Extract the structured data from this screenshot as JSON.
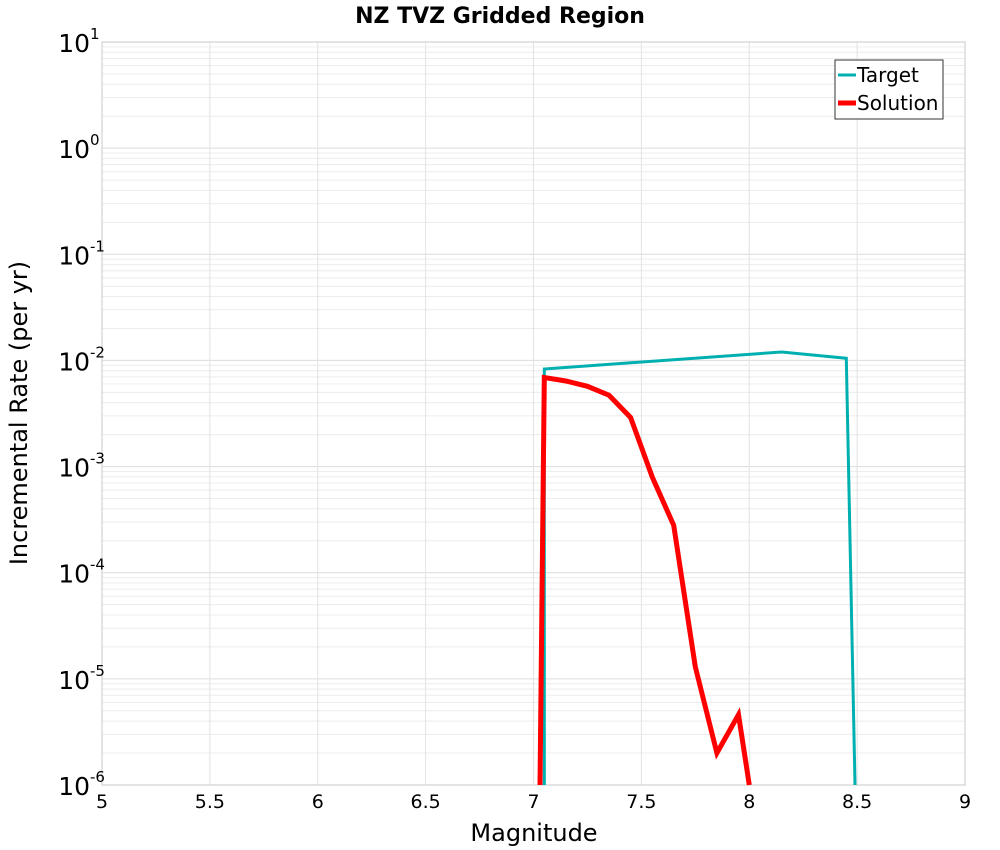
{
  "chart_data": {
    "type": "line",
    "title": "NZ TVZ Gridded Region",
    "xlabel": "Magnitude",
    "ylabel": "Incremental Rate (per yr)",
    "xlim": [
      5,
      9
    ],
    "ylim": [
      1e-06,
      10
    ],
    "yscale": "log",
    "grid": true,
    "legend_position": "top-right",
    "xticks": [
      "5",
      "5.5",
      "6",
      "6.5",
      "7",
      "7.5",
      "8",
      "8.5",
      "9"
    ],
    "yticks": [
      {
        "base": "10",
        "exp": "-6"
      },
      {
        "base": "10",
        "exp": "-5"
      },
      {
        "base": "10",
        "exp": "-4"
      },
      {
        "base": "10",
        "exp": "-3"
      },
      {
        "base": "10",
        "exp": "-2"
      },
      {
        "base": "10",
        "exp": "-1"
      },
      {
        "base": "10",
        "exp": "0"
      },
      {
        "base": "10",
        "exp": "1"
      }
    ],
    "series": [
      {
        "name": "Target",
        "color": "#00b0b0",
        "points": [
          [
            7.05,
            1e-06
          ],
          [
            7.05,
            0.0083
          ],
          [
            8.15,
            0.012
          ],
          [
            8.45,
            0.0105
          ],
          [
            8.49,
            1e-06
          ]
        ]
      },
      {
        "name": "Solution",
        "color": "#ff0000",
        "points": [
          [
            7.03,
            1e-06
          ],
          [
            7.05,
            0.0069
          ],
          [
            7.15,
            0.0064
          ],
          [
            7.25,
            0.0057
          ],
          [
            7.35,
            0.0047
          ],
          [
            7.45,
            0.0029
          ],
          [
            7.55,
            0.0008
          ],
          [
            7.65,
            0.00028
          ],
          [
            7.75,
            1.3e-05
          ],
          [
            7.85,
            2e-06
          ],
          [
            7.95,
            4.6e-06
          ],
          [
            8.0,
            1e-06
          ]
        ]
      }
    ]
  }
}
